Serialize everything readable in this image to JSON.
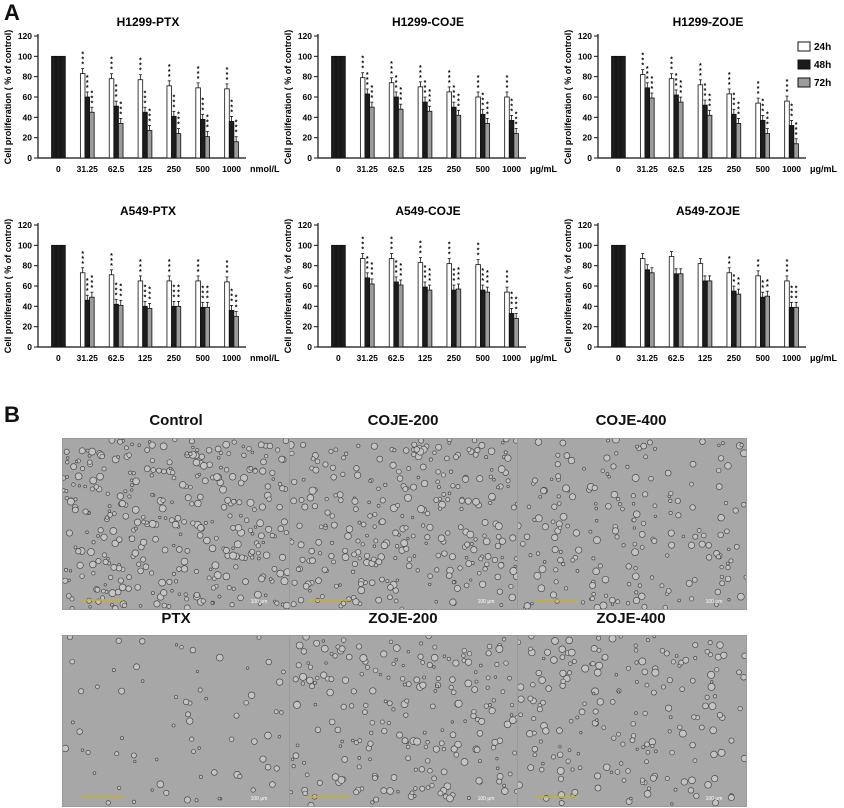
{
  "panel_a_label": "A",
  "panel_b_label": "B",
  "colors": {
    "24h": "#ffffff",
    "48h": "#1c1c1c",
    "72h": "#9c9c9c",
    "axis": "#111111"
  },
  "legend": [
    {
      "name": "24h",
      "color": "#ffffff"
    },
    {
      "name": "48h",
      "color": "#1c1c1c"
    },
    {
      "name": "72h",
      "color": "#9c9c9c"
    }
  ],
  "chart_data": [
    {
      "type": "bar",
      "title": "H1299-PTX",
      "ylabel": "Cell proliferation ( % of control)",
      "unit": "nmol/L",
      "categories": [
        "0",
        "31.25",
        "62.5",
        "125",
        "250",
        "500",
        "1000"
      ],
      "ylim": [
        0,
        120
      ],
      "yticks": [
        0,
        20,
        40,
        60,
        80,
        100,
        120
      ],
      "series": [
        {
          "name": "24h",
          "values": [
            100,
            83,
            78,
            77,
            71,
            69,
            68
          ]
        },
        {
          "name": "48h",
          "values": [
            100,
            60,
            51,
            45,
            41,
            38,
            36
          ]
        },
        {
          "name": "72h",
          "values": [
            100,
            45,
            34,
            27,
            24,
            21,
            16
          ]
        }
      ],
      "significance": [
        "",
        "***",
        "***",
        "***",
        "***",
        "***",
        "***"
      ]
    },
    {
      "type": "bar",
      "title": "H1299-COJE",
      "ylabel": "Cell proliferation ( % of control)",
      "unit": "μg/mL",
      "categories": [
        "0",
        "31.25",
        "62.5",
        "125",
        "250",
        "500",
        "1000"
      ],
      "ylim": [
        0,
        120
      ],
      "yticks": [
        0,
        20,
        40,
        60,
        80,
        100,
        120
      ],
      "series": [
        {
          "name": "24h",
          "values": [
            100,
            79,
            74,
            70,
            65,
            60,
            60
          ]
        },
        {
          "name": "48h",
          "values": [
            100,
            63,
            60,
            55,
            50,
            43,
            37
          ]
        },
        {
          "name": "72h",
          "values": [
            100,
            50,
            48,
            46,
            42,
            34,
            24
          ]
        }
      ],
      "significance": [
        "",
        "***",
        "***",
        "***",
        "***",
        "***",
        "***"
      ]
    },
    {
      "type": "bar",
      "title": "H1299-ZOJE",
      "ylabel": "Cell proliferation ( % of control)",
      "unit": "μg/mL",
      "categories": [
        "0",
        "31.25",
        "62.5",
        "125",
        "250",
        "500",
        "1000"
      ],
      "ylim": [
        0,
        120
      ],
      "yticks": [
        0,
        20,
        40,
        60,
        80,
        100,
        120
      ],
      "series": [
        {
          "name": "24h",
          "values": [
            100,
            82,
            78,
            72,
            63,
            54,
            56
          ]
        },
        {
          "name": "48h",
          "values": [
            100,
            69,
            62,
            52,
            43,
            37,
            32
          ]
        },
        {
          "name": "72h",
          "values": [
            100,
            59,
            55,
            42,
            34,
            24,
            14
          ]
        }
      ],
      "significance": [
        "",
        "***",
        "***",
        "***",
        "***",
        "***",
        "***"
      ]
    },
    {
      "type": "bar",
      "title": "A549-PTX",
      "ylabel": "Cell proliferation ( % of control)",
      "unit": "nmol/L",
      "categories": [
        "0",
        "31.25",
        "62.5",
        "125",
        "250",
        "500",
        "1000"
      ],
      "ylim": [
        0,
        120
      ],
      "yticks": [
        0,
        20,
        40,
        60,
        80,
        100,
        120
      ],
      "series": [
        {
          "name": "24h",
          "values": [
            100,
            73,
            71,
            65,
            65,
            65,
            64
          ]
        },
        {
          "name": "48h",
          "values": [
            100,
            46,
            42,
            40,
            40,
            39,
            36
          ]
        },
        {
          "name": "72h",
          "values": [
            100,
            49,
            41,
            38,
            40,
            39,
            30
          ]
        }
      ],
      "significance": [
        "",
        "***",
        "***",
        "***",
        "***",
        "***",
        "***"
      ]
    },
    {
      "type": "bar",
      "title": "A549-COJE",
      "ylabel": "Cell proliferation ( % of control)",
      "unit": "μg/mL",
      "categories": [
        "0",
        "31.25",
        "62.5",
        "125",
        "250",
        "500",
        "1000"
      ],
      "ylim": [
        0,
        120
      ],
      "yticks": [
        0,
        20,
        40,
        60,
        80,
        100,
        120
      ],
      "series": [
        {
          "name": "24h",
          "values": [
            100,
            87,
            87,
            83,
            82,
            81,
            54
          ]
        },
        {
          "name": "48h",
          "values": [
            100,
            68,
            64,
            59,
            56,
            56,
            33
          ]
        },
        {
          "name": "72h",
          "values": [
            100,
            62,
            61,
            56,
            57,
            54,
            28
          ]
        }
      ],
      "significance": [
        "",
        "***",
        "***",
        "***",
        "***",
        "***",
        "***"
      ]
    },
    {
      "type": "bar",
      "title": "A549-ZOJE",
      "ylabel": "Cell proliferation ( % of control)",
      "unit": "μg/mL",
      "categories": [
        "0",
        "31.25",
        "62.5",
        "125",
        "250",
        "500",
        "1000"
      ],
      "ylim": [
        0,
        120
      ],
      "yticks": [
        0,
        20,
        40,
        60,
        80,
        100,
        120
      ],
      "series": [
        {
          "name": "24h",
          "values": [
            100,
            87,
            89,
            82,
            73,
            70,
            65
          ]
        },
        {
          "name": "48h",
          "values": [
            100,
            76,
            72,
            65,
            55,
            49,
            39
          ]
        },
        {
          "name": "72h",
          "values": [
            100,
            73,
            72,
            65,
            52,
            50,
            39
          ]
        }
      ],
      "significance": [
        "",
        "",
        "",
        "",
        "**",
        "**",
        "***"
      ]
    }
  ],
  "micrographs": [
    {
      "title": "Control",
      "scale_label": "100 μm"
    },
    {
      "title": "COJE-200",
      "scale_label": "100 μm"
    },
    {
      "title": "COJE-400",
      "scale_label": "100 μm"
    },
    {
      "title": "PTX",
      "scale_label": "100 μm"
    },
    {
      "title": "ZOJE-200",
      "scale_label": "100 μm"
    },
    {
      "title": "ZOJE-400",
      "scale_label": "100 μm"
    }
  ]
}
